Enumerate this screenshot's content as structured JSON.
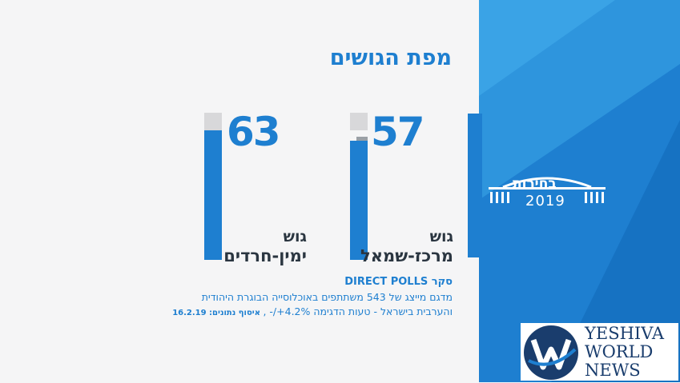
{
  "header": {
    "title": "מפת הגושים"
  },
  "blocs": [
    {
      "id": "center-left",
      "seats": "57",
      "line1": "גוש",
      "line2": "מרכז-שמאל"
    },
    {
      "id": "right-haredi",
      "seats": "63",
      "line1": "גוש",
      "line2": "ימין-חרדים"
    }
  ],
  "poll": {
    "heading": "סקר DIRECT POLLS",
    "line1": "מדגם מייצג של 543 משתתפים באוכלוסייה הבוגרת היהודית",
    "line2_main": "והערבית בישראל - טעות הדגימה 4.2%+/- ,",
    "line2_bold": " איסוף נתונים: 16.2.19"
  },
  "election_logo": {
    "title": "בחירות",
    "year": "2019"
  },
  "brand": {
    "line1": "YESHIVA",
    "line2": "WORLD",
    "line3": "NEWS"
  },
  "colors": {
    "accent": "#1e7fd0",
    "dark_blue": "#1a3d6d",
    "text": "#2a3540"
  }
}
